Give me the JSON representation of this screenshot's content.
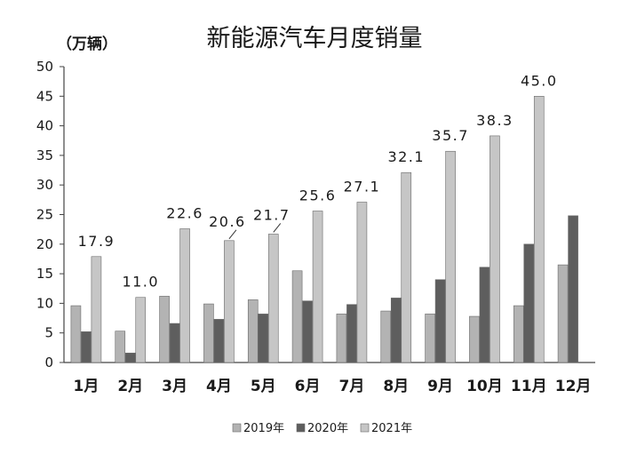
{
  "chart_data": {
    "type": "bar",
    "title": "新能源汽车月度销量",
    "ylabel": "（万辆）",
    "xlabel": "",
    "categories": [
      "1月",
      "2月",
      "3月",
      "4月",
      "5月",
      "6月",
      "7月",
      "8月",
      "9月",
      "10月",
      "11月",
      "12月"
    ],
    "ylim": [
      0,
      50
    ],
    "yticks": [
      0,
      5,
      10,
      15,
      20,
      25,
      30,
      35,
      40,
      45,
      50
    ],
    "grid": false,
    "legend_position": "bottom",
    "series": [
      {
        "name": "2019年",
        "color": "#b3b3b3",
        "values": [
          9.6,
          5.3,
          11.2,
          9.9,
          10.6,
          15.5,
          8.2,
          8.7,
          8.2,
          7.8,
          9.6,
          16.5
        ]
      },
      {
        "name": "2020年",
        "color": "#5e5e5e",
        "values": [
          5.2,
          1.6,
          6.6,
          7.3,
          8.2,
          10.4,
          9.8,
          10.9,
          14.0,
          16.1,
          20.0,
          24.8
        ]
      },
      {
        "name": "2021年",
        "color": "#c6c6c6",
        "values": [
          17.9,
          11.0,
          22.6,
          20.6,
          21.7,
          25.6,
          27.1,
          32.1,
          35.7,
          38.3,
          45.0,
          null
        ],
        "labels": [
          "17.9",
          "11.0",
          "22.6",
          "20.6",
          "21.7",
          "25.6",
          "27.1",
          "32.1",
          "35.7",
          "38.3",
          "45.0",
          ""
        ]
      }
    ]
  }
}
